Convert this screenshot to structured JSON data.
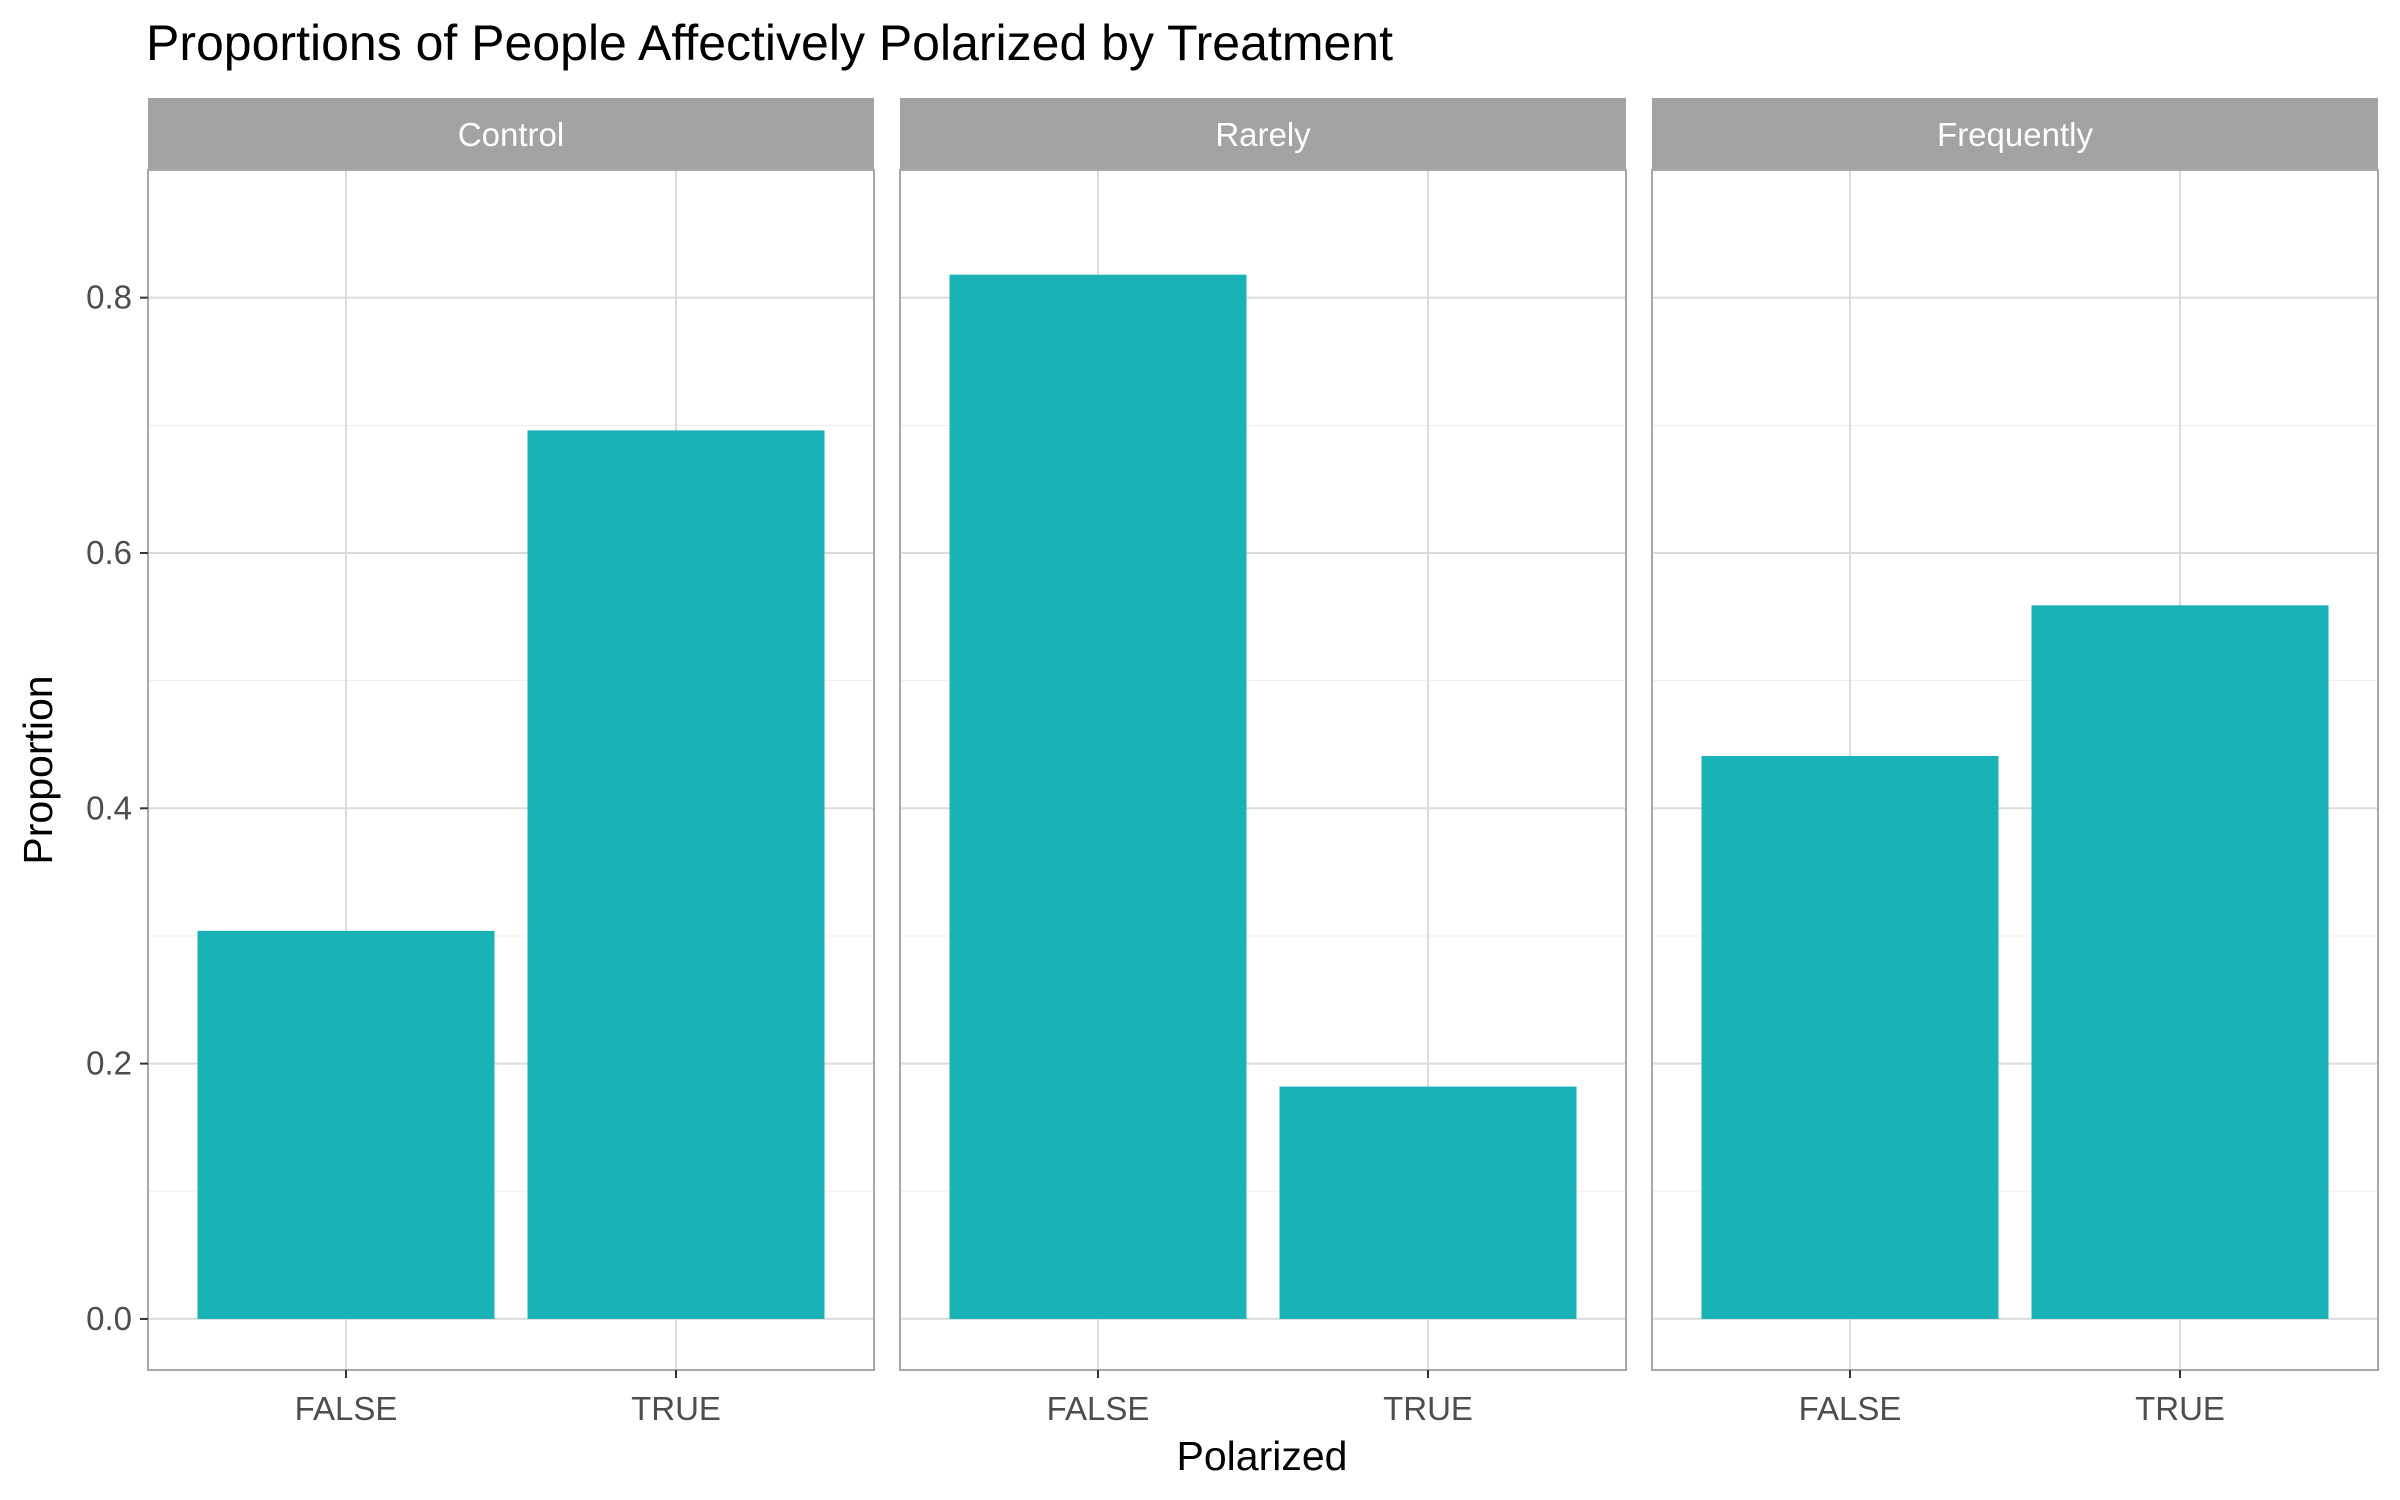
{
  "chart_data": {
    "type": "bar",
    "title": "Proportions of People Affectively Polarized by Treatment",
    "xlabel": "Polarized",
    "ylabel": "Proportion",
    "categories": [
      "FALSE",
      "TRUE"
    ],
    "facets": [
      {
        "name": "Control",
        "values": [
          0.304,
          0.696
        ]
      },
      {
        "name": "Rarely",
        "values": [
          0.818,
          0.182
        ]
      },
      {
        "name": "Frequently",
        "values": [
          0.441,
          0.559
        ]
      }
    ],
    "ylim": [
      -0.04,
      0.9
    ],
    "yticks": [
      "0.0",
      "0.2",
      "0.4",
      "0.6",
      "0.8"
    ],
    "grid": true,
    "legend": "none",
    "colors": {
      "bar": "#19B2B7",
      "strip": "#A3A3A3",
      "grid_major": "#DBDBDB",
      "grid_minor": "#EDEDED",
      "panel_border": "#A8A8A8"
    }
  }
}
